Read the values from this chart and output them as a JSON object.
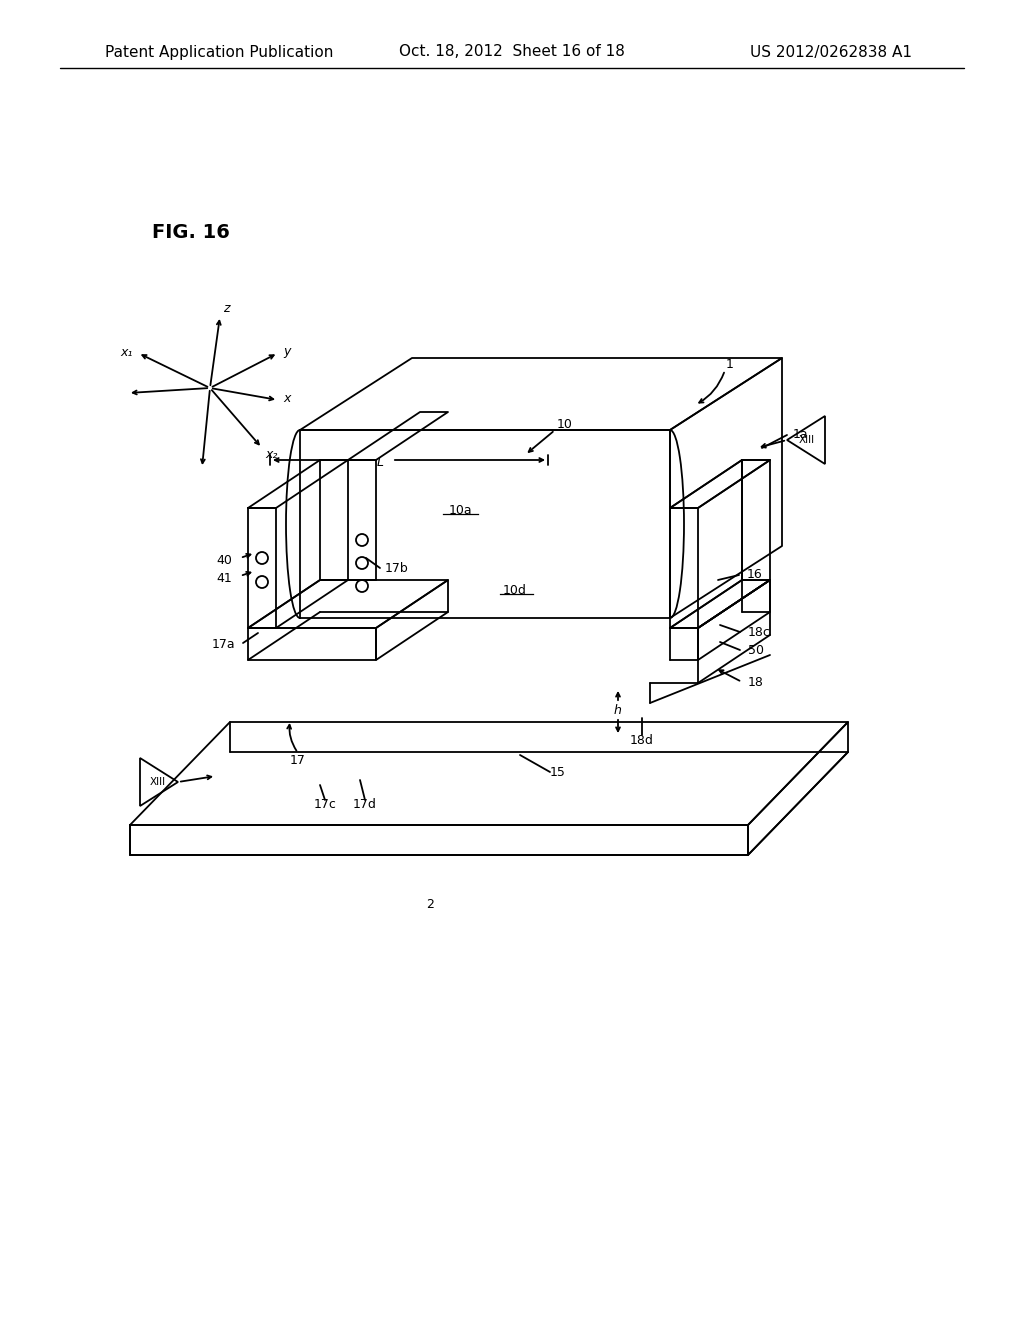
{
  "header_left": "Patent Application Publication",
  "header_center": "Oct. 18, 2012  Sheet 16 of 18",
  "header_right": "US 2012/0262838 A1",
  "fig_label": "FIG. 16",
  "bg_color": "#ffffff",
  "line_color": "#000000",
  "lw": 1.3
}
